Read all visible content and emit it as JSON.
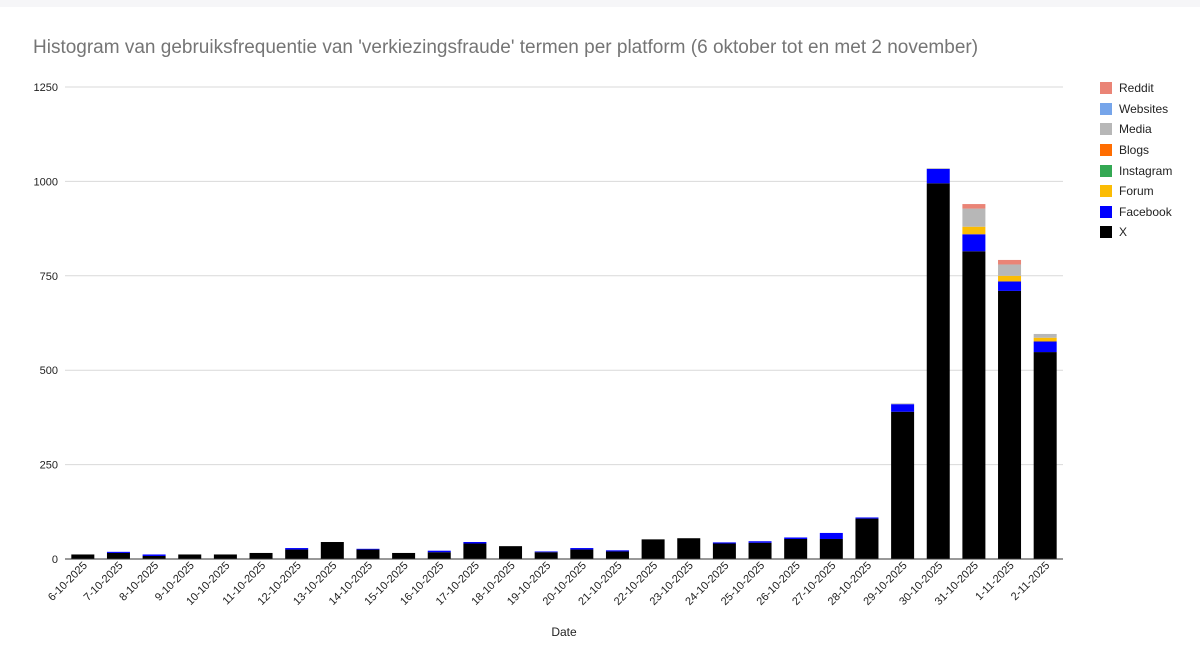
{
  "chart_data": {
    "type": "bar",
    "stacked": true,
    "title": "Histogram van gebruiksfrequentie van 'verkiezingsfraude' termen per platform (6 oktober tot en met 2 november)",
    "xlabel": "Date",
    "ylabel": "",
    "ylim": [
      0,
      1250
    ],
    "yticks": [
      0,
      250,
      500,
      750,
      1000,
      1250
    ],
    "grid": true,
    "legend_position": "right",
    "categories": [
      "6-10-2025",
      "7-10-2025",
      "8-10-2025",
      "9-10-2025",
      "10-10-2025",
      "11-10-2025",
      "12-10-2025",
      "13-10-2025",
      "14-10-2025",
      "15-10-2025",
      "16-10-2025",
      "17-10-2025",
      "18-10-2025",
      "19-10-2025",
      "20-10-2025",
      "21-10-2025",
      "22-10-2025",
      "23-10-2025",
      "24-10-2025",
      "25-10-2025",
      "26-10-2025",
      "27-10-2025",
      "28-10-2025",
      "29-10-2025",
      "30-10-2025",
      "31-10-2025",
      "1-11-2025",
      "2-11-2025"
    ],
    "series": [
      {
        "name": "X",
        "color": "#000000",
        "values": [
          12,
          16,
          8,
          12,
          12,
          16,
          25,
          45,
          25,
          16,
          18,
          41,
          34,
          18,
          25,
          20,
          52,
          55,
          41,
          43,
          53,
          53,
          107,
          390,
          995,
          815,
          710,
          548
        ]
      },
      {
        "name": "Facebook",
        "color": "#0000ff",
        "values": [
          0,
          3,
          4,
          0,
          0,
          0,
          4,
          0,
          2,
          0,
          4,
          4,
          0,
          2,
          4,
          3,
          0,
          0,
          3,
          4,
          4,
          16,
          3,
          20,
          38,
          45,
          25,
          28
        ]
      },
      {
        "name": "Forum",
        "color": "#fbbc04",
        "values": [
          0,
          0,
          0,
          0,
          0,
          0,
          0,
          0,
          0,
          0,
          0,
          0,
          0,
          0,
          0,
          0,
          0,
          0,
          0,
          0,
          0,
          0,
          0,
          0,
          0,
          20,
          15,
          10
        ]
      },
      {
        "name": "Instagram",
        "color": "#34a853",
        "values": [
          0,
          0,
          0,
          0,
          0,
          0,
          0,
          0,
          0,
          0,
          0,
          0,
          0,
          0,
          0,
          0,
          0,
          0,
          0,
          0,
          0,
          0,
          0,
          0,
          0,
          0,
          0,
          0
        ]
      },
      {
        "name": "Blogs",
        "color": "#ff6d01",
        "values": [
          0,
          0,
          0,
          0,
          0,
          0,
          0,
          0,
          0,
          0,
          0,
          0,
          0,
          0,
          0,
          0,
          0,
          0,
          0,
          0,
          0,
          0,
          0,
          0,
          0,
          0,
          0,
          0
        ]
      },
      {
        "name": "Media",
        "color": "#b7b7b7",
        "values": [
          0,
          0,
          0,
          0,
          0,
          0,
          0,
          0,
          0,
          0,
          0,
          0,
          0,
          0,
          0,
          0,
          0,
          0,
          0,
          0,
          0,
          0,
          0,
          2,
          2,
          48,
          30,
          10
        ]
      },
      {
        "name": "Websites",
        "color": "#76a5ea",
        "values": [
          0,
          0,
          0,
          0,
          0,
          0,
          0,
          0,
          0,
          0,
          0,
          0,
          0,
          0,
          0,
          0,
          0,
          0,
          0,
          0,
          0,
          0,
          0,
          0,
          0,
          0,
          0,
          0
        ]
      },
      {
        "name": "Reddit",
        "color": "#ea8476",
        "values": [
          0,
          0,
          0,
          0,
          0,
          0,
          0,
          0,
          0,
          0,
          0,
          0,
          0,
          0,
          0,
          0,
          0,
          0,
          0,
          0,
          0,
          0,
          0,
          0,
          0,
          12,
          12,
          0
        ]
      }
    ],
    "legend_order": [
      "Reddit",
      "Websites",
      "Media",
      "Blogs",
      "Instagram",
      "Forum",
      "Facebook",
      "X"
    ]
  }
}
